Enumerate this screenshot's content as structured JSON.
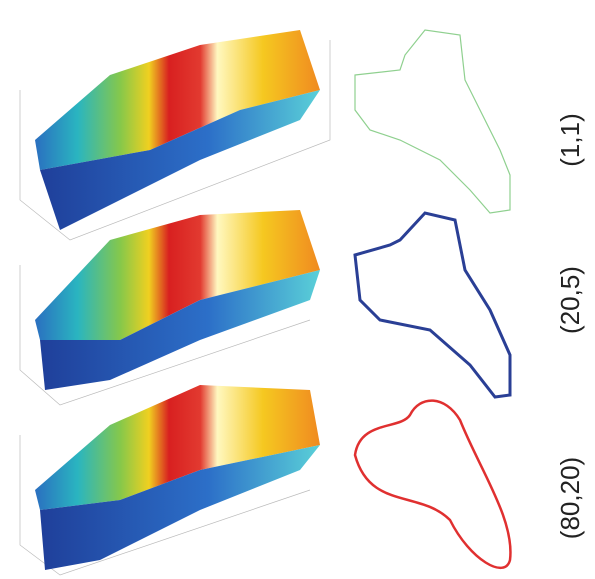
{
  "labels": [
    "(1,1)",
    "(20,5)",
    "(80,20)"
  ]
}
